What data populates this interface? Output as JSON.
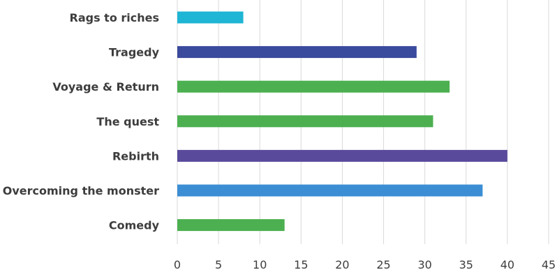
{
  "chart_data": {
    "type": "bar",
    "orientation": "horizontal",
    "categories": [
      "Rags to riches",
      "Tragedy",
      "Voyage & Return",
      "The quest",
      "Rebirth",
      "Overcoming the monster",
      "Comedy"
    ],
    "values": [
      8,
      29,
      33,
      31,
      40,
      37,
      13
    ],
    "colors": [
      "#1fb5d4",
      "#3a4a9c",
      "#4cb050",
      "#4cb050",
      "#5a4a9c",
      "#3b8ed4",
      "#4cb050"
    ],
    "xlim": [
      0,
      45
    ],
    "xticks": [
      0,
      5,
      10,
      15,
      20,
      25,
      30,
      35,
      40,
      45
    ],
    "grid": "vertical",
    "title": "",
    "xlabel": "",
    "ylabel": ""
  }
}
